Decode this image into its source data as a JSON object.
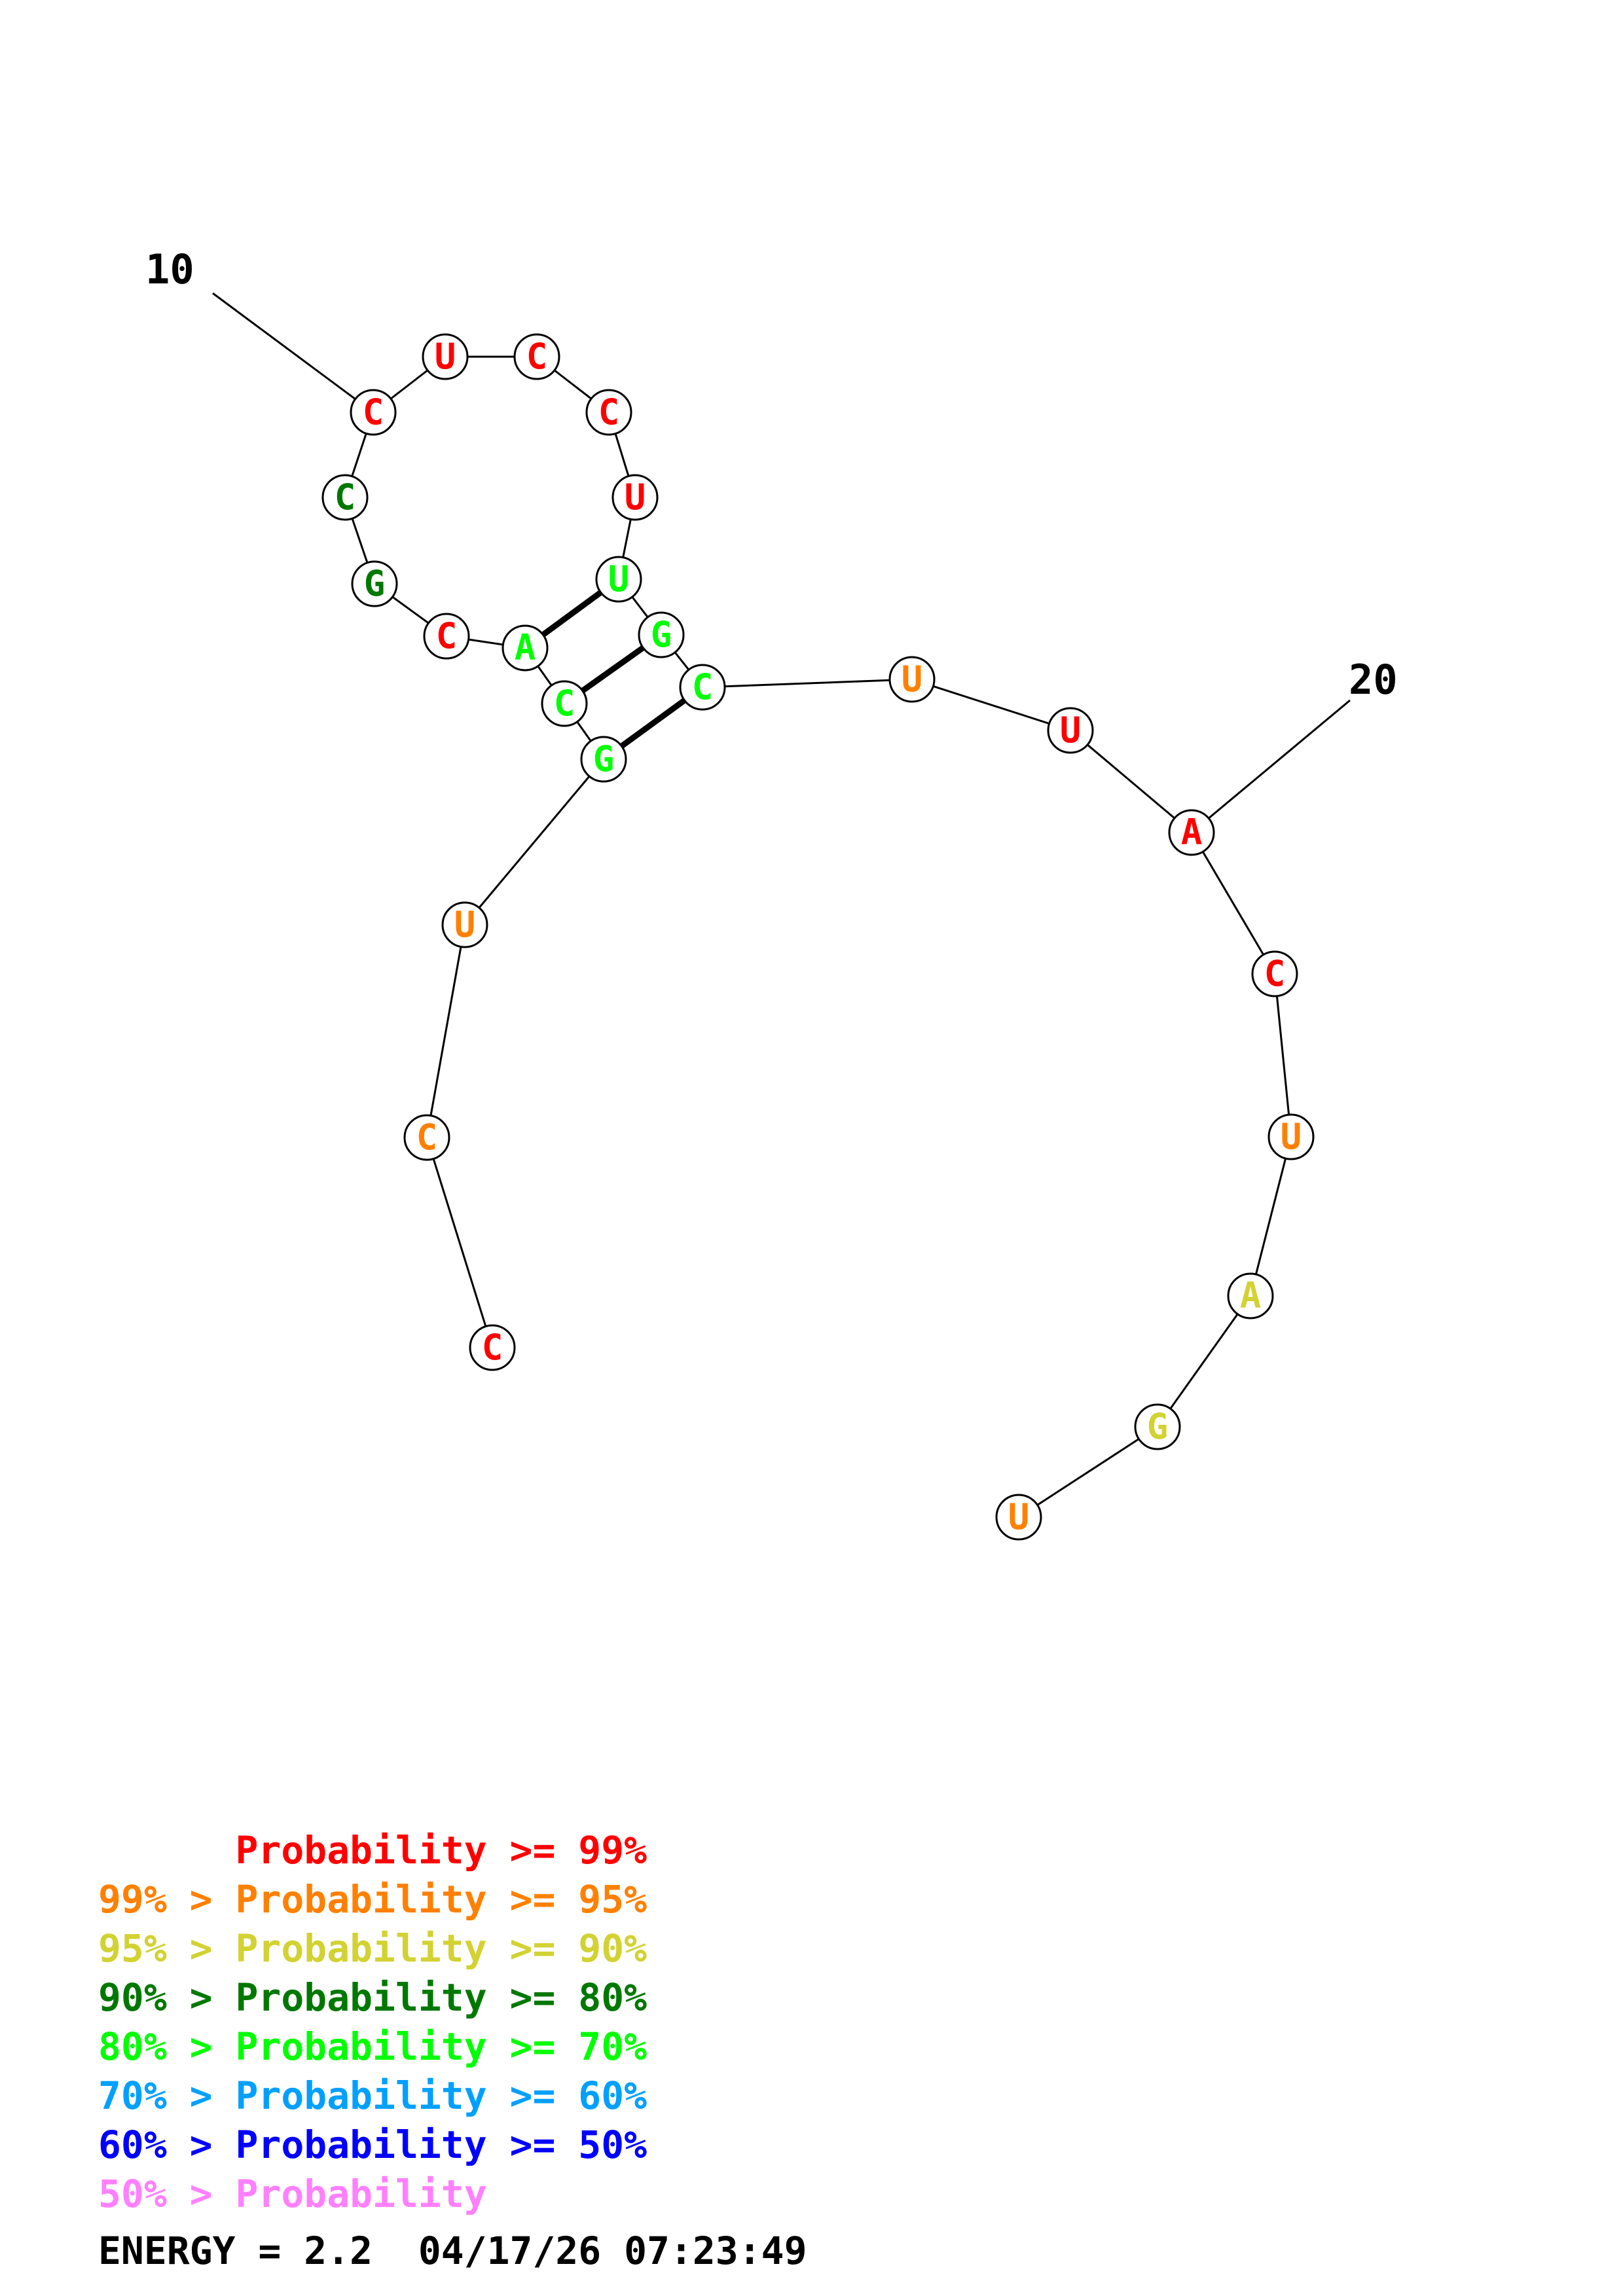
{
  "colors": {
    "p99": "#ff0000",
    "p95": "#ff8000",
    "p90": "#d2d232",
    "p80": "#007800",
    "p70": "#00ff00",
    "p60": "#00a0ff",
    "p50": "#0000ff",
    "low": "#ff80ff"
  },
  "nucleotides": [
    {
      "base": "C",
      "color": "#ff0000"
    },
    {
      "base": "C",
      "color": "#ff8000"
    },
    {
      "base": "U",
      "color": "#ff8000"
    },
    {
      "base": "G",
      "color": "#00ff00"
    },
    {
      "base": "C",
      "color": "#00ff00"
    },
    {
      "base": "A",
      "color": "#00ff00"
    },
    {
      "base": "C",
      "color": "#ff0000"
    },
    {
      "base": "G",
      "color": "#007800"
    },
    {
      "base": "C",
      "color": "#007800"
    },
    {
      "base": "C",
      "color": "#ff0000"
    },
    {
      "base": "U",
      "color": "#ff0000"
    },
    {
      "base": "C",
      "color": "#ff0000"
    },
    {
      "base": "C",
      "color": "#ff0000"
    },
    {
      "base": "U",
      "color": "#ff0000"
    },
    {
      "base": "U",
      "color": "#00ff00"
    },
    {
      "base": "G",
      "color": "#00ff00"
    },
    {
      "base": "C",
      "color": "#00ff00"
    },
    {
      "base": "U",
      "color": "#ff8000"
    },
    {
      "base": "U",
      "color": "#ff0000"
    },
    {
      "base": "A",
      "color": "#ff0000"
    },
    {
      "base": "C",
      "color": "#ff0000"
    },
    {
      "base": "U",
      "color": "#ff8000"
    },
    {
      "base": "A",
      "color": "#d2d232"
    },
    {
      "base": "G",
      "color": "#d2d232"
    },
    {
      "base": "U",
      "color": "#ff8000"
    }
  ],
  "pairs": [
    [
      4,
      17
    ],
    [
      5,
      16
    ],
    [
      6,
      15
    ]
  ],
  "index_labels": [
    {
      "text": "10",
      "position": 10
    },
    {
      "text": "20",
      "position": 20
    }
  ],
  "legend": [
    {
      "text": "      Probability >= 99%",
      "color": "#ff0000"
    },
    {
      "text": "99% > Probability >= 95%",
      "color": "#ff8000"
    },
    {
      "text": "95% > Probability >= 90%",
      "color": "#d2d232"
    },
    {
      "text": "90% > Probability >= 80%",
      "color": "#007800"
    },
    {
      "text": "80% > Probability >= 70%",
      "color": "#00ff00"
    },
    {
      "text": "70% > Probability >= 60%",
      "color": "#00a0ff"
    },
    {
      "text": "60% > Probability >= 50%",
      "color": "#0000ff"
    },
    {
      "text": "50% > Probability",
      "color": "#ff80ff"
    }
  ],
  "footer": {
    "energy": "ENERGY = 2.2  04/17/26 07:23:49"
  }
}
